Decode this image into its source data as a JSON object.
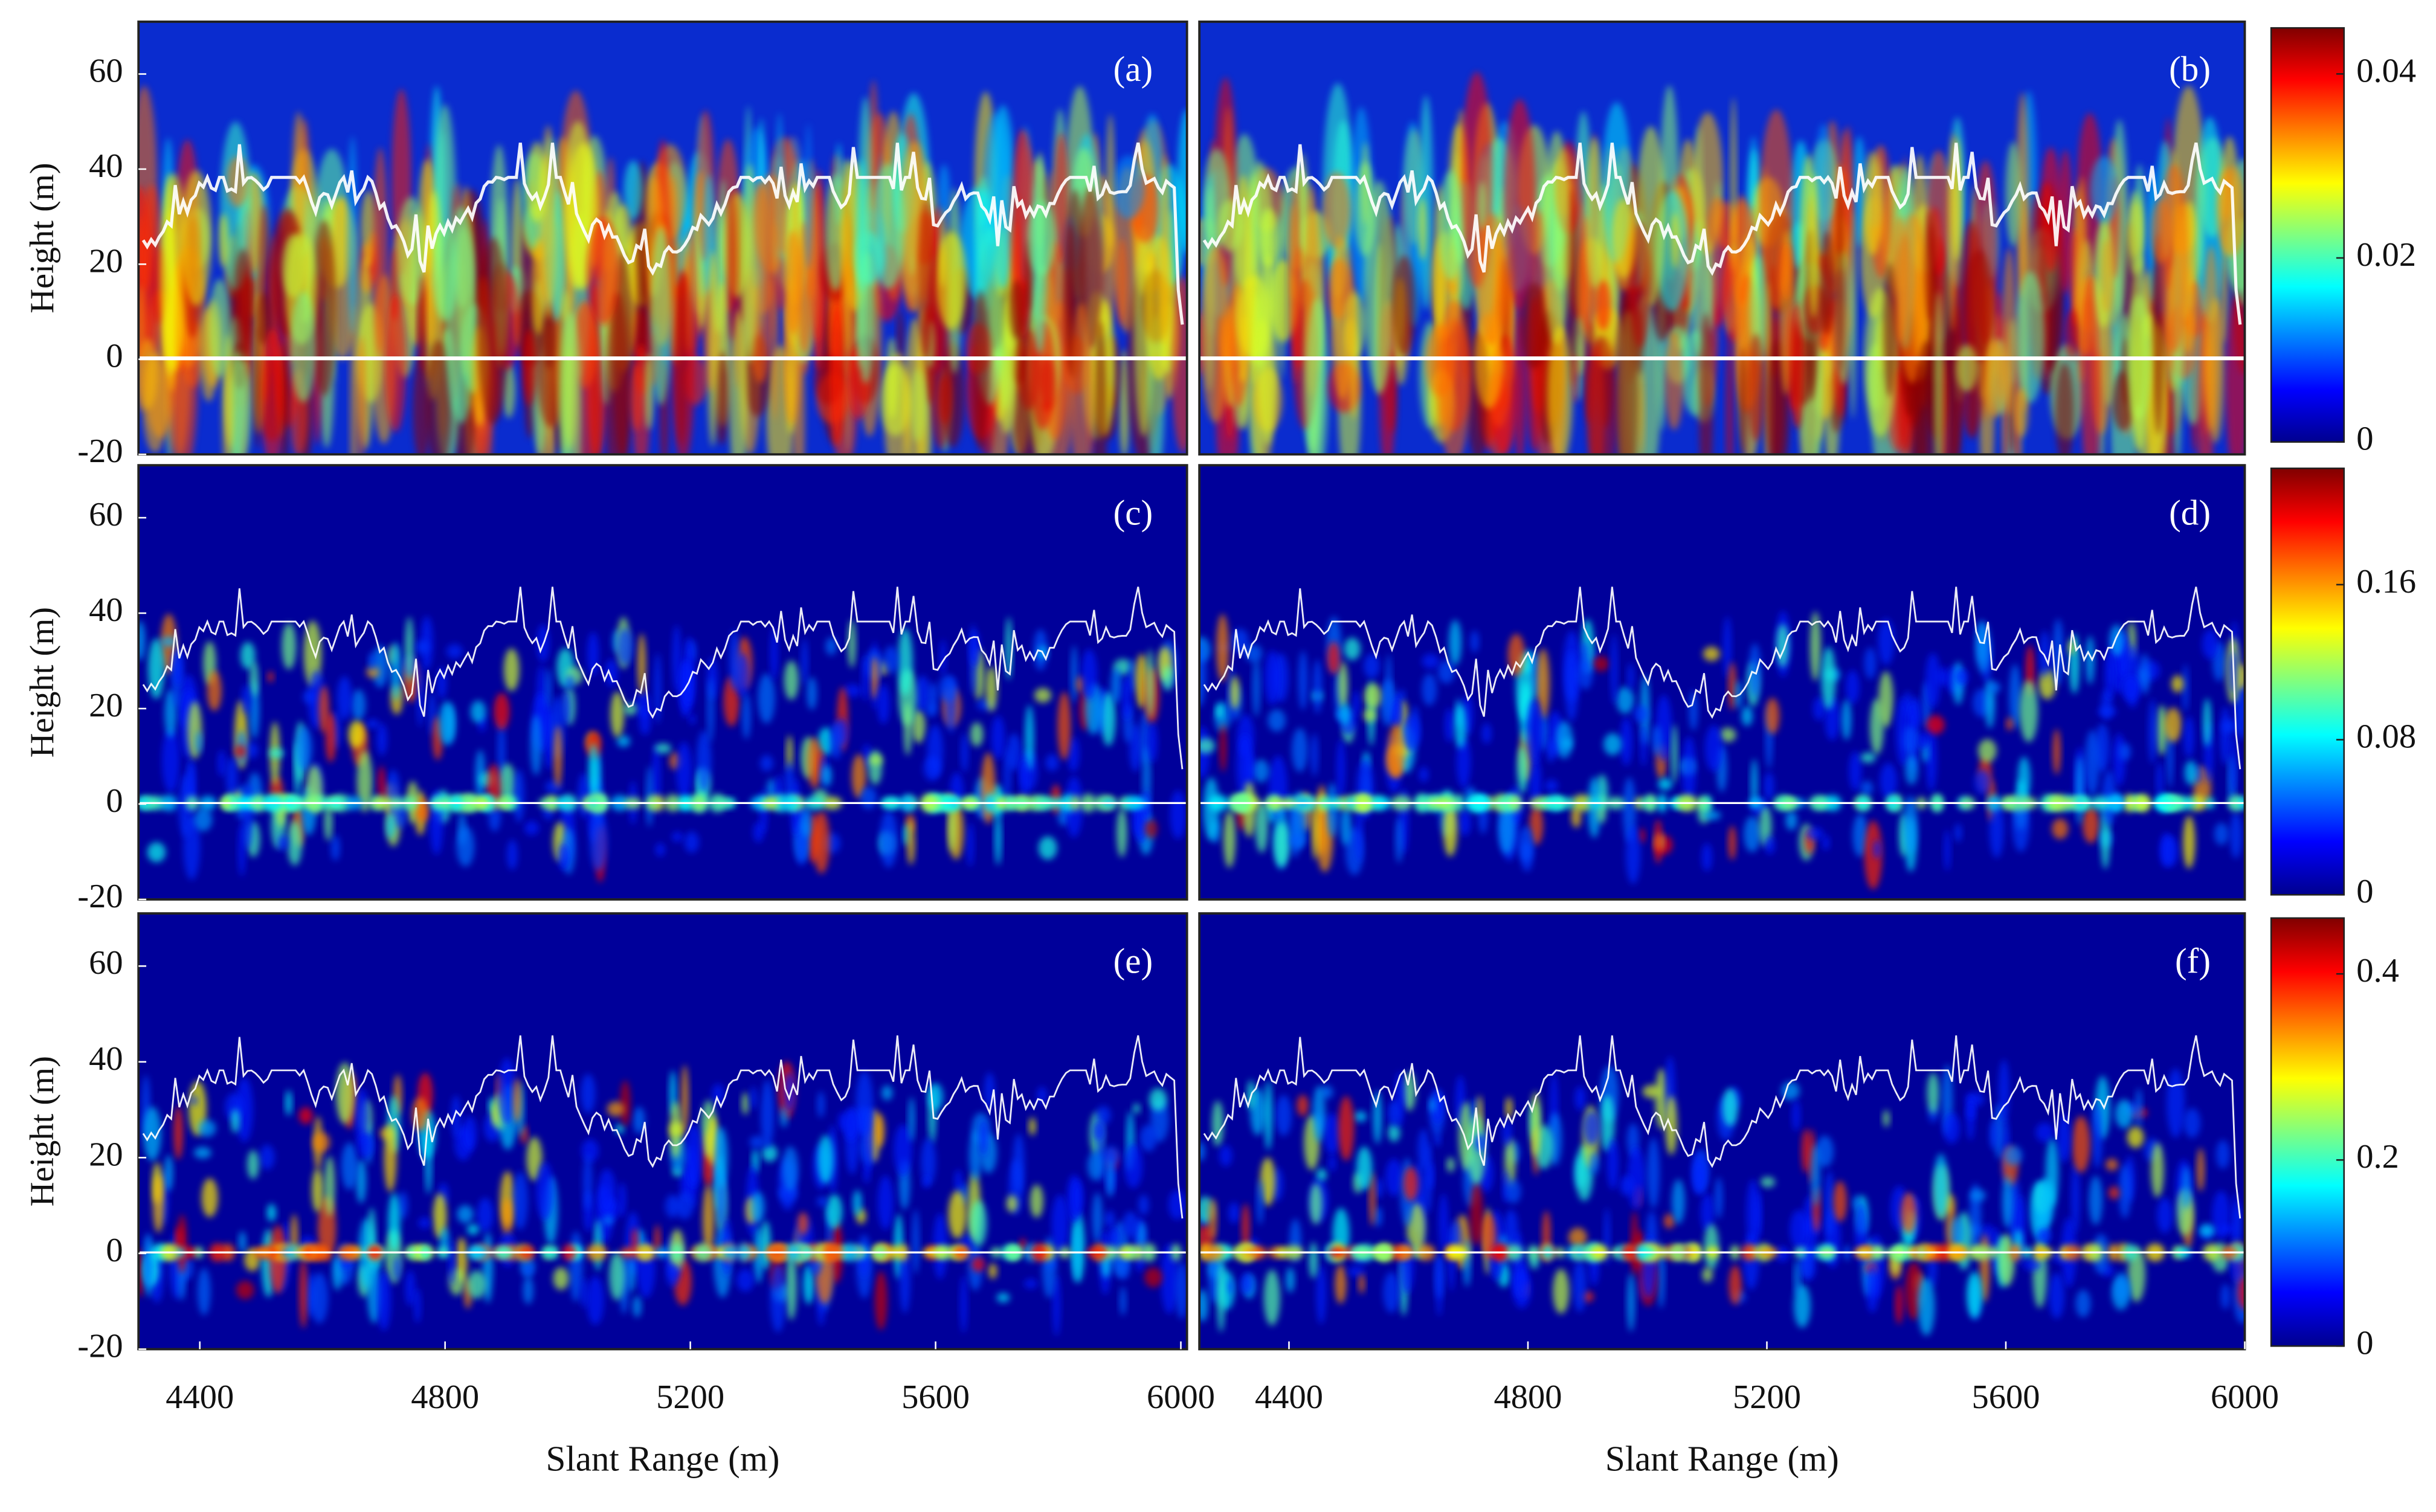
{
  "chart_data": [
    {
      "type": "heatmap",
      "label": "(a)",
      "xlim": [
        4300,
        6010
      ],
      "ylim": [
        -20,
        71
      ],
      "yticks": [
        -20,
        0,
        20,
        40,
        60
      ],
      "ylabel": "Height (m)"
    },
    {
      "type": "heatmap",
      "label": "(b)",
      "xlim": [
        4250,
        6000
      ],
      "ylim": [
        -20,
        71
      ]
    },
    {
      "type": "heatmap",
      "label": "(c)",
      "xlim": [
        4300,
        6010
      ],
      "ylim": [
        -20,
        71
      ],
      "yticks": [
        -20,
        0,
        20,
        40,
        60
      ],
      "ylabel": "Height (m)"
    },
    {
      "type": "heatmap",
      "label": "(d)",
      "xlim": [
        4250,
        6000
      ],
      "ylim": [
        -20,
        71
      ]
    },
    {
      "type": "heatmap",
      "label": "(e)",
      "xlim": [
        4300,
        6010
      ],
      "ylim": [
        -20,
        71
      ],
      "yticks": [
        -20,
        0,
        20,
        40,
        60
      ],
      "ylabel": "Height (m)",
      "xticks": [
        4400,
        4800,
        5200,
        5600,
        6000
      ],
      "xlabel": "Slant Range (m)"
    },
    {
      "type": "heatmap",
      "label": "(f)",
      "xlim": [
        4250,
        6000
      ],
      "ylim": [
        -20,
        71
      ],
      "xticks": [
        4400,
        4800,
        5200,
        5600,
        6000
      ],
      "xlabel": "Slant Range (m)"
    },
    {
      "type": "colorbar",
      "ylim": [
        0,
        0.045
      ],
      "yticks": [
        0,
        0.02,
        0.04
      ]
    },
    {
      "type": "colorbar",
      "ylim": [
        0,
        0.22
      ],
      "yticks": [
        0,
        0.08,
        0.16
      ]
    },
    {
      "type": "colorbar",
      "ylim": [
        0,
        0.46
      ],
      "yticks": [
        0,
        0.2,
        0.4
      ]
    }
  ]
}
